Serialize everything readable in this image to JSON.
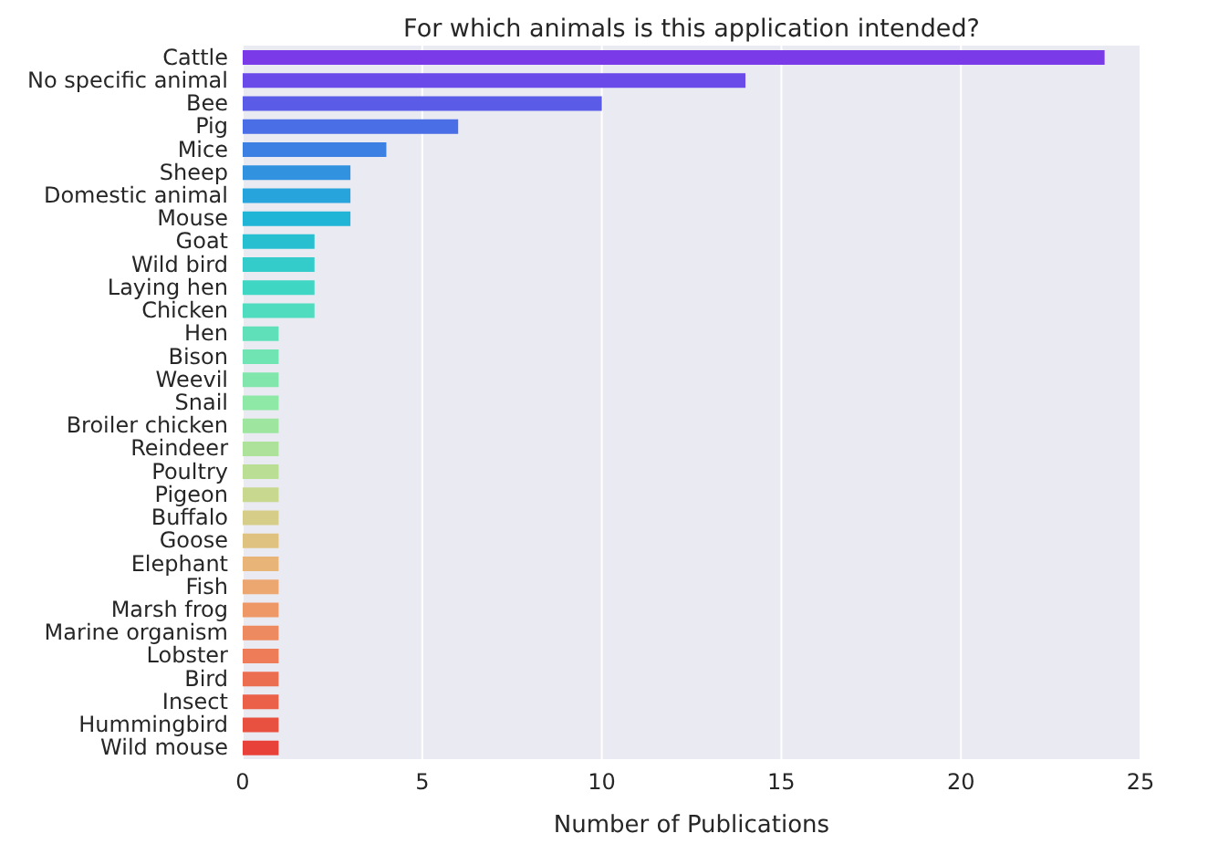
{
  "chart_data": {
    "type": "bar",
    "orientation": "horizontal",
    "title": "For which animals is this application intended?",
    "xlabel": "Number of Publications",
    "categories": [
      "Cattle",
      "No specific animal",
      "Bee",
      "Pig",
      "Mice",
      "Sheep",
      "Domestic animal",
      "Mouse",
      "Goat",
      "Wild bird",
      "Laying hen",
      "Chicken",
      "Hen",
      "Bison",
      "Weevil",
      "Snail",
      "Broiler chicken",
      "Reindeer",
      "Poultry",
      "Pigeon",
      "Buffalo",
      "Goose",
      "Elephant",
      "Fish",
      "Marsh frog",
      "Marine organism",
      "Lobster",
      "Bird",
      "Insect",
      "Hummingbird",
      "Wild mouse"
    ],
    "values": [
      24,
      14,
      10,
      6,
      4,
      3,
      3,
      3,
      2,
      2,
      2,
      2,
      1,
      1,
      1,
      1,
      1,
      1,
      1,
      1,
      1,
      1,
      1,
      1,
      1,
      1,
      1,
      1,
      1,
      1,
      1
    ],
    "colors": [
      "#7b3ae8",
      "#6a4ae8",
      "#5a5ce8",
      "#4a6ee6",
      "#3c80e4",
      "#3192e0",
      "#28a4dc",
      "#20b4d6",
      "#28c0d0",
      "#34ccca",
      "#40d6c4",
      "#50dcbe",
      "#60e0b8",
      "#70e4b2",
      "#80e6ac",
      "#8ee8a6",
      "#9ee6a0",
      "#ace29a",
      "#bade94",
      "#c8d88e",
      "#d6ce88",
      "#e0c280",
      "#e8b478",
      "#eca670",
      "#ee9868",
      "#ee8a60",
      "#ee7c58",
      "#ec6e50",
      "#ea6048",
      "#e85040",
      "#e8413a"
    ],
    "xlim": [
      0,
      25
    ],
    "xticks": [
      0,
      5,
      10,
      15,
      20,
      25
    ],
    "grid": "x"
  }
}
